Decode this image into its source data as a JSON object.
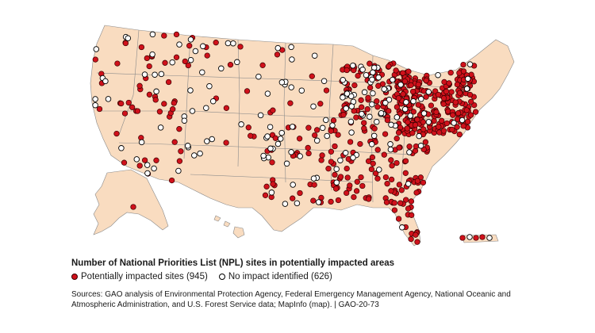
{
  "legend": {
    "title": "Number of National Priorities List (NPL) sites in potentially impacted areas",
    "items": [
      {
        "label": "Potentially impacted sites (945)",
        "color": "#d0111b",
        "marker": "filled-red-circle"
      },
      {
        "label": "No impact identified (626)",
        "color": "#ffffff",
        "marker": "open-black-circle"
      }
    ]
  },
  "source_note": "Sources: GAO analysis of Environmental Protection Agency, Federal Emergency Management Agency, National Oceanic and Atmospheric Administration, and U.S. Forest Service data; MapInfo (map).  |  GAO-20-73",
  "map": {
    "land_color": "#f9dcc0",
    "border_color": "#8a8a8a",
    "regions": [
      "contiguous-us",
      "alaska",
      "hawaii",
      "puerto-rico"
    ]
  }
}
